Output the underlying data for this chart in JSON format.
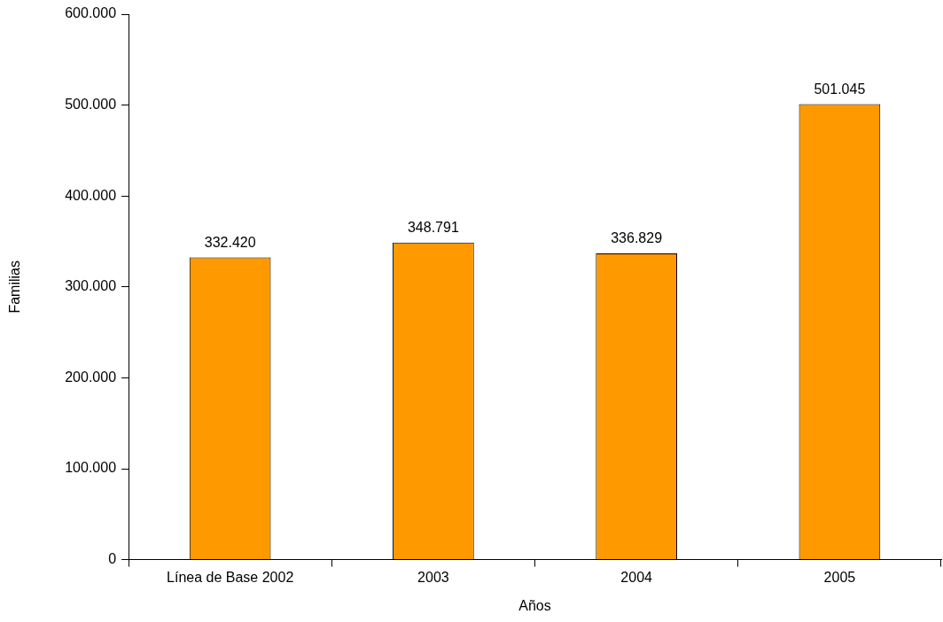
{
  "chart_data": {
    "type": "bar",
    "xlabel": "Años",
    "ylabel": "Familias",
    "categories": [
      "Línea de Base 2002",
      "2003",
      "2004",
      "2005"
    ],
    "values": [
      332420,
      348791,
      336829,
      501045
    ],
    "value_labels": [
      "332.420",
      "348.791",
      "336.829",
      "501.045"
    ],
    "color": "#ff9900",
    "ylim": [
      0,
      600000
    ],
    "yticks": [
      0,
      {
        "value": 100000,
        "label": "100.000"
      },
      {
        "value": 200000,
        "label": "200.000"
      },
      {
        "value": 300000,
        "label": "300.000"
      },
      {
        "value": 400000,
        "label": "400.000"
      },
      {
        "value": 500000,
        "label": "500.000"
      },
      {
        "value": 600000,
        "label": "600.000"
      }
    ],
    "grid": false,
    "legend": false
  }
}
